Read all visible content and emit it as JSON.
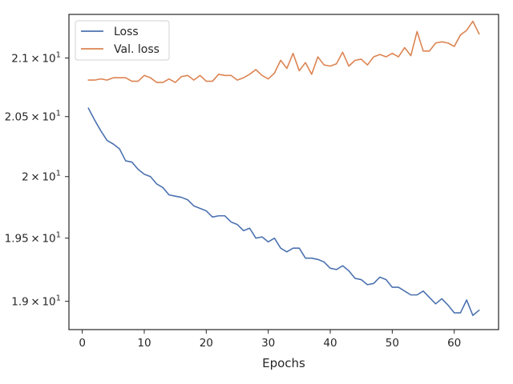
{
  "chart_data": {
    "type": "line",
    "xlabel": "Epochs",
    "ylabel": "",
    "yscale": "log",
    "xlim": [
      -2.15,
      67.15
    ],
    "ylim": [
      18.78,
      21.38
    ],
    "xticks": [
      0,
      10,
      20,
      30,
      40,
      50,
      60
    ],
    "yticks": [
      {
        "value": 19.0,
        "mant": "1.9",
        "exp": "1"
      },
      {
        "value": 19.5,
        "mant": "1.95",
        "exp": "1"
      },
      {
        "value": 20.0,
        "mant": "2",
        "exp": "1"
      },
      {
        "value": 20.5,
        "mant": "2.05",
        "exp": "1"
      },
      {
        "value": 21.0,
        "mant": "2.1",
        "exp": "1"
      }
    ],
    "times_sign": "×",
    "base": "10",
    "grid": false,
    "legend_position": "top-left",
    "x": [
      1,
      2,
      3,
      4,
      5,
      6,
      7,
      8,
      9,
      10,
      11,
      12,
      13,
      14,
      15,
      16,
      17,
      18,
      19,
      20,
      21,
      22,
      23,
      24,
      25,
      26,
      27,
      28,
      29,
      30,
      31,
      32,
      33,
      34,
      35,
      36,
      37,
      38,
      39,
      40,
      41,
      42,
      43,
      44,
      45,
      46,
      47,
      48,
      49,
      50,
      51,
      52,
      53,
      54,
      55,
      56,
      57,
      58,
      59,
      60,
      61,
      62,
      63,
      64
    ],
    "series": [
      {
        "name": "Loss",
        "color": "#4c72b0",
        "values": [
          20.57,
          20.47,
          20.38,
          20.3,
          20.27,
          20.23,
          20.13,
          20.12,
          20.06,
          20.02,
          20.0,
          19.94,
          19.91,
          19.85,
          19.84,
          19.83,
          19.81,
          19.76,
          19.74,
          19.72,
          19.67,
          19.68,
          19.68,
          19.63,
          19.61,
          19.56,
          19.58,
          19.5,
          19.51,
          19.47,
          19.5,
          19.42,
          19.39,
          19.42,
          19.42,
          19.34,
          19.34,
          19.33,
          19.31,
          19.26,
          19.25,
          19.28,
          19.24,
          19.18,
          19.17,
          19.13,
          19.14,
          19.19,
          19.17,
          19.11,
          19.11,
          19.08,
          19.05,
          19.05,
          19.08,
          19.03,
          18.98,
          19.02,
          18.97,
          18.91,
          18.91,
          19.01,
          18.89,
          18.93
        ]
      },
      {
        "name": "Val. loss",
        "color": "#dd8452",
        "values": [
          20.81,
          20.81,
          20.82,
          20.81,
          20.83,
          20.83,
          20.83,
          20.8,
          20.8,
          20.85,
          20.83,
          20.79,
          20.79,
          20.82,
          20.79,
          20.84,
          20.85,
          20.81,
          20.85,
          20.8,
          20.8,
          20.86,
          20.85,
          20.85,
          20.81,
          20.83,
          20.86,
          20.9,
          20.85,
          20.82,
          20.87,
          20.98,
          20.91,
          21.04,
          20.89,
          20.96,
          20.86,
          21.01,
          20.94,
          20.93,
          20.95,
          21.05,
          20.93,
          20.98,
          20.99,
          20.94,
          21.01,
          21.03,
          21.01,
          21.04,
          21.01,
          21.09,
          21.02,
          21.23,
          21.06,
          21.06,
          21.13,
          21.14,
          21.13,
          21.1,
          21.2,
          21.24,
          21.32,
          21.21
        ]
      }
    ]
  }
}
